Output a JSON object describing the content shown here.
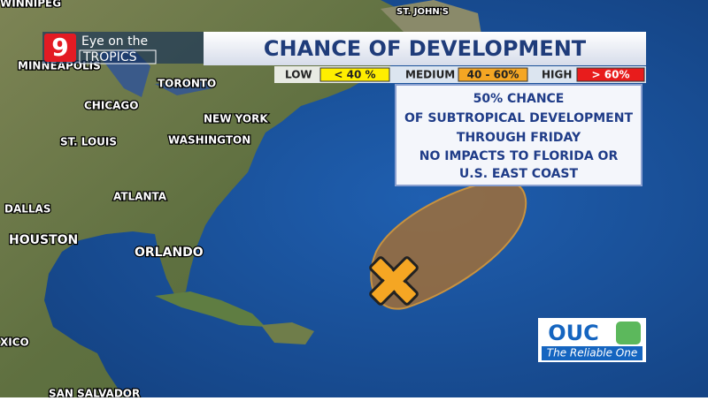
{
  "header": {
    "logo_number": "9",
    "logo_line1": "Eye on the",
    "logo_line2": "TROPICS",
    "title": "CHANCE OF DEVELOPMENT"
  },
  "legend": {
    "low": "LOW",
    "low_range": "< 40 %",
    "medium": "MEDIUM",
    "medium_range": "40 - 60%",
    "high": "HIGH",
    "high_range": "> 60%"
  },
  "info": {
    "lines": [
      "50% CHANCE",
      "OF SUBTROPICAL DEVELOPMENT",
      "THROUGH FRIDAY",
      "NO IMPACTS TO FLORIDA OR",
      "U.S. EAST COAST"
    ]
  },
  "cities": [
    "WINNIPEG",
    "MINNEAPOLIS",
    "TORONTO",
    "CHICAGO",
    "NEW YORK",
    "ST. LOUIS",
    "WASHINGTON",
    "ATLANTA",
    "DALLAS",
    "HOUSTON",
    "ORLANDO",
    "ST. JOHN'S",
    "XICO",
    "SAN SALVADOR"
  ],
  "sponsor": {
    "name": "OUC",
    "tagline": "The Reliable One"
  }
}
